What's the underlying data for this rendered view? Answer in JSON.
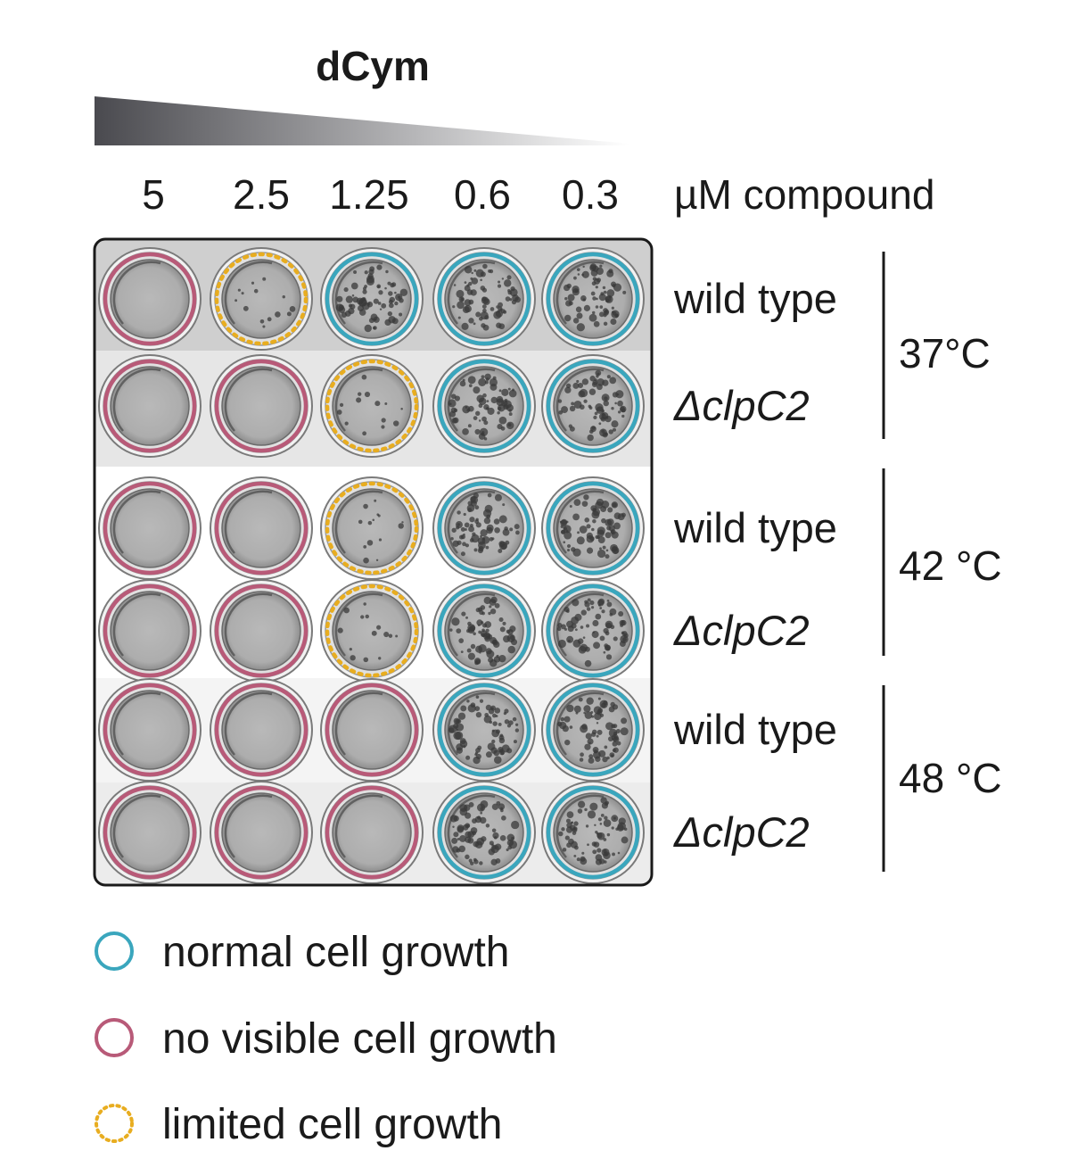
{
  "title": "dCym",
  "concentrations": [
    "5",
    "2.5",
    "1.25",
    "0.6",
    "0.3"
  ],
  "unit_label": "µM compound",
  "rows": [
    {
      "strain": "wild type",
      "italic": false,
      "temp_group": 0,
      "wells": [
        {
          "status": "none"
        },
        {
          "status": "limited"
        },
        {
          "status": "normal"
        },
        {
          "status": "normal"
        },
        {
          "status": "normal"
        }
      ]
    },
    {
      "strain": "ΔclpC2",
      "italic": true,
      "temp_group": 0,
      "wells": [
        {
          "status": "none"
        },
        {
          "status": "none"
        },
        {
          "status": "limited"
        },
        {
          "status": "normal"
        },
        {
          "status": "normal"
        }
      ]
    },
    {
      "strain": "wild type",
      "italic": false,
      "temp_group": 1,
      "wells": [
        {
          "status": "none"
        },
        {
          "status": "none"
        },
        {
          "status": "limited"
        },
        {
          "status": "normal"
        },
        {
          "status": "normal"
        }
      ]
    },
    {
      "strain": "ΔclpC2",
      "italic": true,
      "temp_group": 1,
      "wells": [
        {
          "status": "none"
        },
        {
          "status": "none"
        },
        {
          "status": "limited"
        },
        {
          "status": "normal"
        },
        {
          "status": "normal"
        }
      ]
    },
    {
      "strain": "wild type",
      "italic": false,
      "temp_group": 2,
      "wells": [
        {
          "status": "none"
        },
        {
          "status": "none"
        },
        {
          "status": "none"
        },
        {
          "status": "normal"
        },
        {
          "status": "normal"
        }
      ]
    },
    {
      "strain": "ΔclpC2",
      "italic": true,
      "temp_group": 2,
      "wells": [
        {
          "status": "none"
        },
        {
          "status": "none"
        },
        {
          "status": "none"
        },
        {
          "status": "normal"
        },
        {
          "status": "normal"
        }
      ]
    }
  ],
  "temperatures": [
    "37°C",
    "42 °C",
    "48 °C"
  ],
  "legend": [
    {
      "key": "normal",
      "label": "normal cell growth"
    },
    {
      "key": "none",
      "label": "no visible cell growth"
    },
    {
      "key": "limited",
      "label": "limited cell growth"
    }
  ],
  "colors": {
    "normal": "#3aa6bd",
    "none": "#b85a78",
    "limited": "#e8ad20",
    "gradient_dark": "#4a4a4f",
    "gradient_light": "#ffffff"
  }
}
